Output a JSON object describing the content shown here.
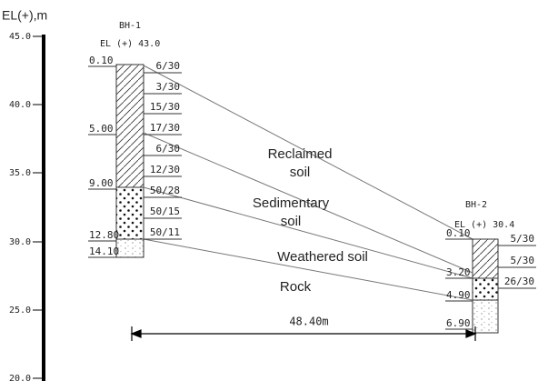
{
  "axis": {
    "title": "EL(+),m",
    "ticks": [
      "45.0",
      "40.0",
      "35.0",
      "30.0",
      "25.0",
      "20.0"
    ]
  },
  "boreholes": [
    {
      "name": "BH-1",
      "elevation_label": "EL (+) 43.0",
      "depths": [
        "0.10",
        "5.00",
        "9.00",
        "12.80",
        "14.10"
      ],
      "n_values": [
        "6/30",
        "3/30",
        "15/30",
        "17/30",
        "6/30",
        "12/30",
        "50/28",
        "50/15",
        "50/11"
      ]
    },
    {
      "name": "BH-2",
      "elevation_label": "EL (+) 30.4",
      "depths": [
        "0.10",
        "3.20",
        "4.90",
        "6.90"
      ],
      "n_values": [
        "5/30",
        "5/30",
        "26/30"
      ]
    }
  ],
  "layers": [
    [
      "Reclaimed",
      "soil"
    ],
    [
      "Sedimentary",
      "soil"
    ],
    [
      "Weathered soil"
    ],
    [
      "Rock"
    ]
  ],
  "distance": "48.40m"
}
